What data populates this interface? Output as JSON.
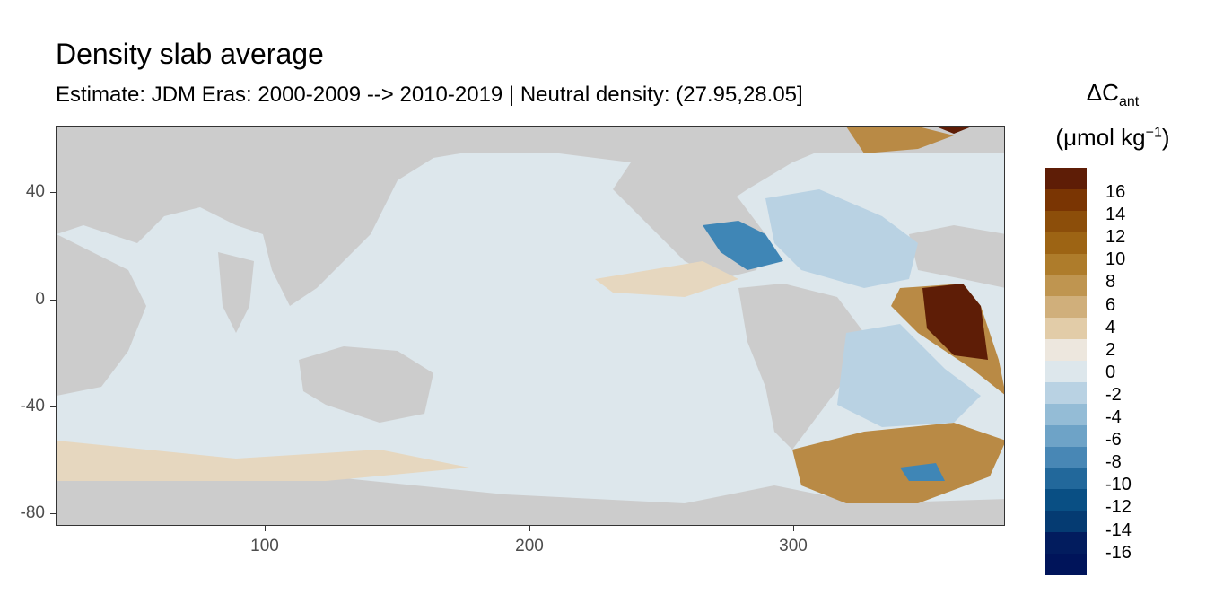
{
  "title": "Density slab average",
  "subtitle": "Estimate: JDM Eras: 2000-2009 --> 2010-2019 | Neutral density: (27.95,28.05]",
  "axes": {
    "x_ticks": [
      "100",
      "200",
      "300"
    ],
    "y_ticks": [
      "40",
      "0",
      "-40",
      "-80"
    ]
  },
  "legend": {
    "title_line1": "ΔC",
    "title_sub": "ant",
    "unit_open": "(μmol kg",
    "unit_sup": "−1",
    "unit_close": ")",
    "labels": [
      "16",
      "14",
      "12",
      "10",
      "8",
      "6",
      "4",
      "2",
      "0",
      "-2",
      "-4",
      "-6",
      "-8",
      "-10",
      "-12",
      "-14",
      "-16"
    ],
    "colors": [
      "#5e1d06",
      "#7a3503",
      "#8c4e0a",
      "#9d6414",
      "#ae7c2b",
      "#bf9550",
      "#d0af7b",
      "#e2cca8",
      "#ede7de",
      "#dde7ec",
      "#b9d2e3",
      "#94bcd6",
      "#6ea3c7",
      "#4887b5",
      "#22689b",
      "#094f84",
      "#053b72",
      "#021c5e",
      "#00145a"
    ]
  },
  "colors": {
    "land": "#cccccc",
    "ocean_near_zero": "#dde7ec",
    "positive_light": "#e6d7bf",
    "positive_mid": "#b98a45",
    "positive_dark": "#5e1d06",
    "negative_light": "#b9d2e3",
    "negative_mid": "#3f86b6"
  }
}
